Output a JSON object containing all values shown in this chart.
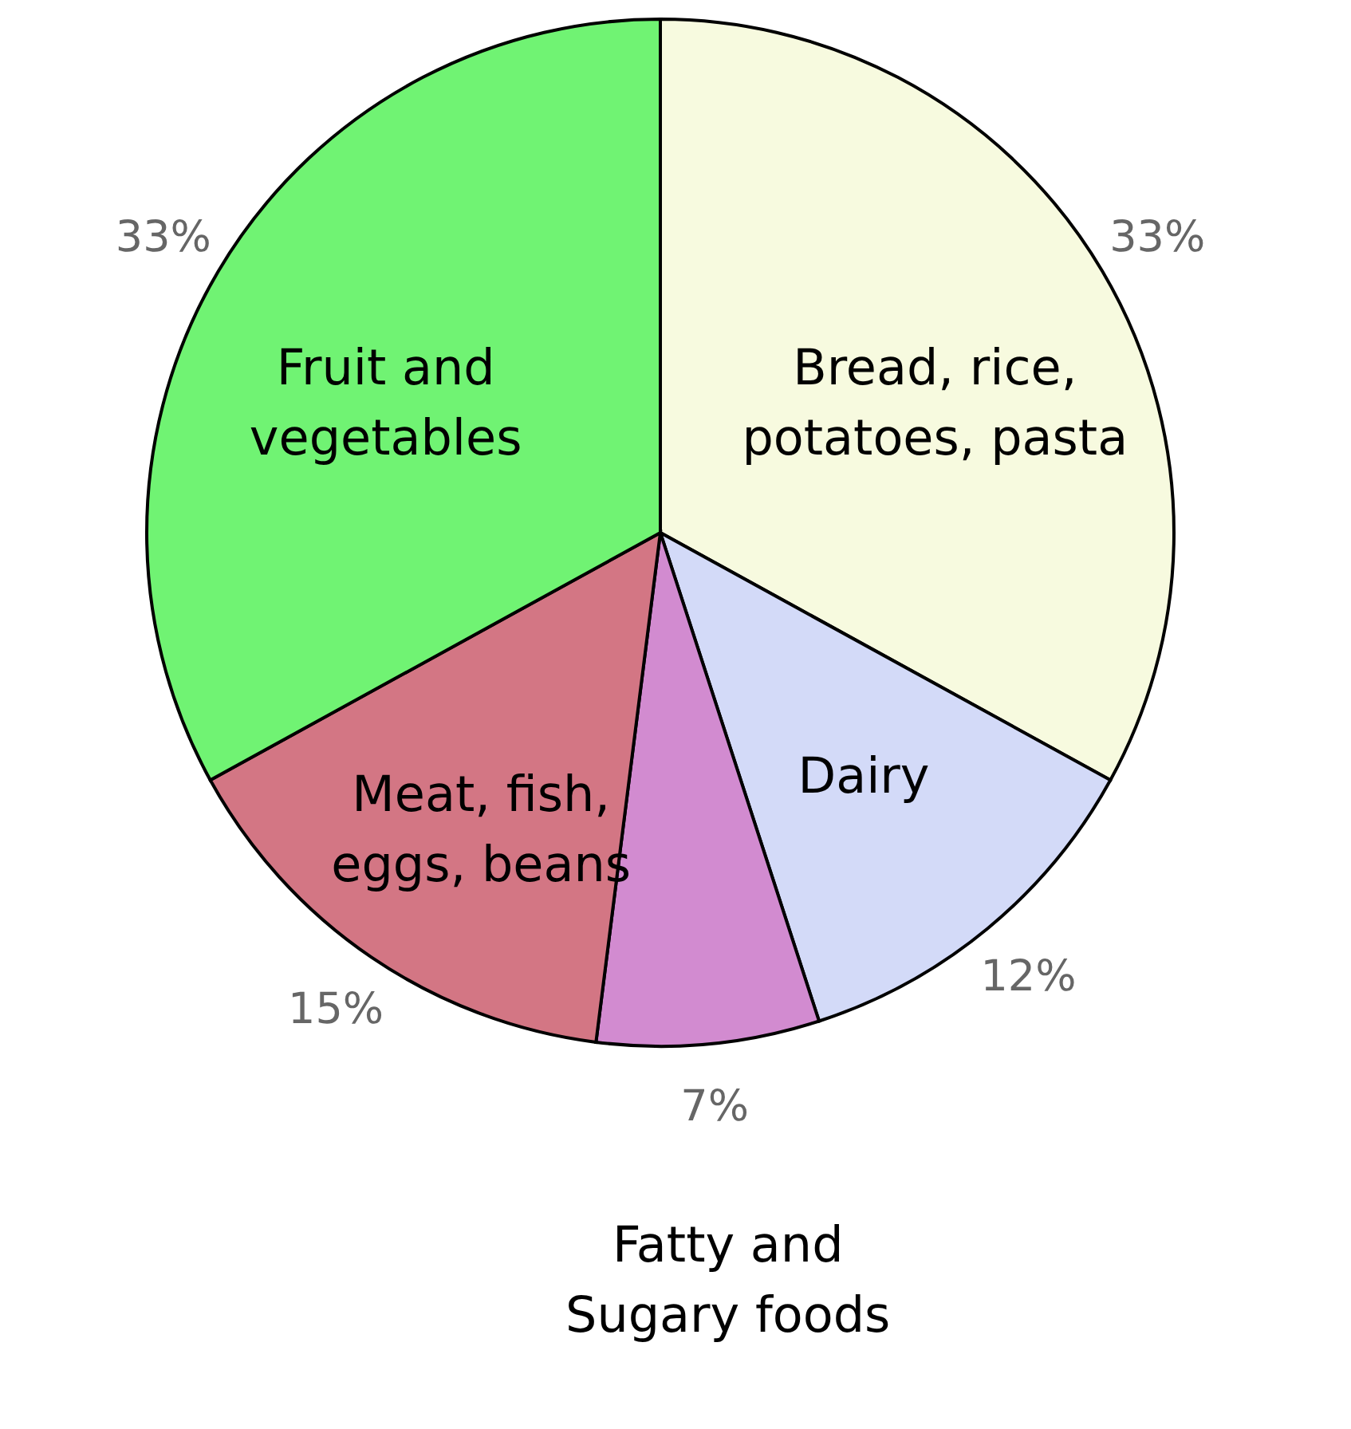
{
  "chart_data": {
    "type": "pie",
    "categories": [
      "Bread, rice, potatoes, pasta",
      "Dairy",
      "Fatty and Sugary foods",
      "Meat, fish, eggs, beans",
      "Fruit and vegetables"
    ],
    "values": [
      33,
      12,
      7,
      15,
      33
    ],
    "colors": [
      "#f7fadf",
      "#d3daf8",
      "#d28bd0",
      "#d37684",
      "#70f373"
    ],
    "value_labels": [
      "33%",
      "12%",
      "7%",
      "15%",
      "33%"
    ]
  }
}
